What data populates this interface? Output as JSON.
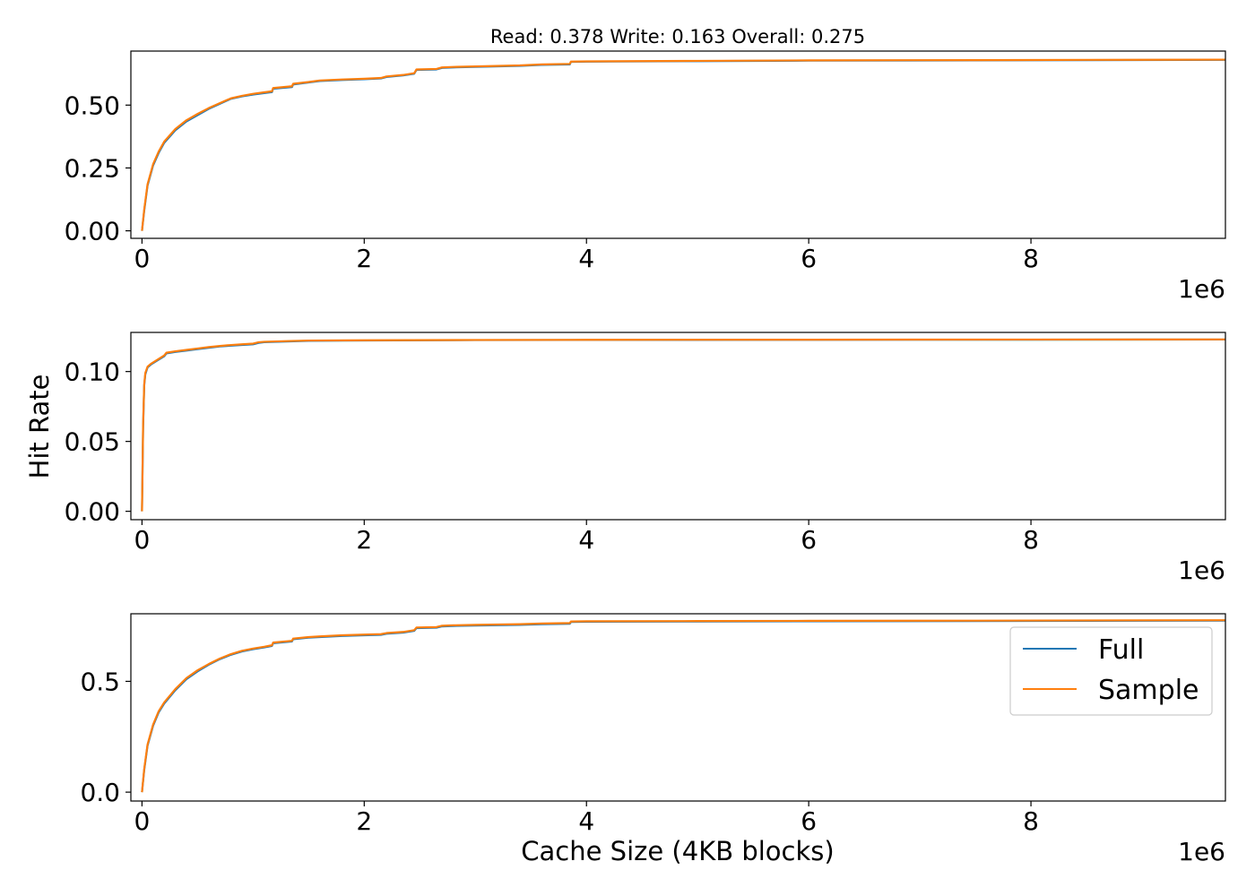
{
  "title": "Read: 0.378 Write: 0.163 Overall: 0.275",
  "ylabel": "Hit Rate",
  "xlabel": "Cache Size (4KB blocks)",
  "x_offset_label": "1e6",
  "colors": {
    "full": "#1f77b4",
    "sample": "#ff7f0e"
  },
  "legend": {
    "placement": "upper-right (bottom panel)",
    "entries": [
      "Full",
      "Sample"
    ]
  },
  "chart_data": [
    {
      "type": "line",
      "panel": "read",
      "title": "",
      "xlabel": "",
      "ylabel": "",
      "xlim": [
        -0.1,
        9.75
      ],
      "ylim": [
        -0.03,
        0.715
      ],
      "x_scale_note": "x in units of 1e6 blocks",
      "xticks": [
        0,
        2,
        4,
        6,
        8
      ],
      "xtick_labels": [
        "0",
        "2",
        "4",
        "6",
        "8"
      ],
      "yticks": [
        0.0,
        0.25,
        0.5
      ],
      "ytick_labels": [
        "0.00",
        "0.25",
        "0.50"
      ],
      "grid": false,
      "series": [
        {
          "name": "Full",
          "x": [
            0.0,
            0.02,
            0.05,
            0.1,
            0.15,
            0.2,
            0.3,
            0.4,
            0.5,
            0.6,
            0.7,
            0.8,
            0.9,
            1.0,
            1.1,
            1.17,
            1.18,
            1.35,
            1.36,
            1.5,
            1.6,
            1.8,
            2.0,
            2.15,
            2.2,
            2.35,
            2.45,
            2.47,
            2.65,
            2.7,
            2.8,
            3.0,
            3.4,
            3.6,
            3.85,
            3.86,
            4.0,
            5.0,
            6.0,
            7.5,
            8.5,
            9.75
          ],
          "y": [
            0.0,
            0.08,
            0.18,
            0.26,
            0.31,
            0.35,
            0.4,
            0.435,
            0.46,
            0.485,
            0.505,
            0.525,
            0.535,
            0.542,
            0.548,
            0.552,
            0.565,
            0.572,
            0.582,
            0.59,
            0.596,
            0.6,
            0.603,
            0.606,
            0.612,
            0.618,
            0.625,
            0.64,
            0.642,
            0.648,
            0.65,
            0.652,
            0.656,
            0.66,
            0.662,
            0.672,
            0.673,
            0.675,
            0.677,
            0.678,
            0.679,
            0.68
          ]
        },
        {
          "name": "Sample",
          "x": [
            0.0,
            0.02,
            0.05,
            0.1,
            0.15,
            0.2,
            0.3,
            0.4,
            0.5,
            0.6,
            0.7,
            0.8,
            0.9,
            1.0,
            1.1,
            1.17,
            1.18,
            1.35,
            1.36,
            1.5,
            1.6,
            1.8,
            2.0,
            2.15,
            2.2,
            2.35,
            2.45,
            2.47,
            2.65,
            2.7,
            2.8,
            3.0,
            3.4,
            3.6,
            3.85,
            3.86,
            4.0,
            5.0,
            6.0,
            7.5,
            8.5,
            9.75
          ],
          "y": [
            0.0,
            0.085,
            0.185,
            0.265,
            0.315,
            0.355,
            0.405,
            0.44,
            0.465,
            0.488,
            0.508,
            0.527,
            0.537,
            0.545,
            0.551,
            0.555,
            0.568,
            0.575,
            0.585,
            0.592,
            0.598,
            0.602,
            0.605,
            0.608,
            0.614,
            0.62,
            0.627,
            0.642,
            0.644,
            0.65,
            0.652,
            0.654,
            0.658,
            0.662,
            0.664,
            0.673,
            0.674,
            0.676,
            0.678,
            0.679,
            0.68,
            0.681
          ]
        }
      ]
    },
    {
      "type": "line",
      "panel": "write",
      "title": "",
      "xlabel": "",
      "ylabel": "Hit Rate",
      "xlim": [
        -0.1,
        9.75
      ],
      "ylim": [
        -0.006,
        0.128
      ],
      "x_scale_note": "x in units of 1e6 blocks",
      "xticks": [
        0,
        2,
        4,
        6,
        8
      ],
      "xtick_labels": [
        "0",
        "2",
        "4",
        "6",
        "8"
      ],
      "yticks": [
        0.0,
        0.05,
        0.1
      ],
      "ytick_labels": [
        "0.00",
        "0.05",
        "0.10"
      ],
      "grid": false,
      "series": [
        {
          "name": "Full",
          "x": [
            0.0,
            0.01,
            0.02,
            0.03,
            0.05,
            0.08,
            0.12,
            0.2,
            0.22,
            0.3,
            0.4,
            0.5,
            0.6,
            0.7,
            0.8,
            0.9,
            1.0,
            1.05,
            1.1,
            1.3,
            1.5,
            2.0,
            3.0,
            4.0,
            6.0,
            8.0,
            9.75
          ],
          "y": [
            0.0,
            0.06,
            0.09,
            0.098,
            0.103,
            0.105,
            0.107,
            0.111,
            0.113,
            0.114,
            0.115,
            0.116,
            0.117,
            0.118,
            0.1185,
            0.119,
            0.1195,
            0.1205,
            0.121,
            0.1215,
            0.122,
            0.1222,
            0.1225,
            0.1226,
            0.1227,
            0.1228,
            0.1229
          ]
        },
        {
          "name": "Sample",
          "x": [
            0.0,
            0.01,
            0.02,
            0.03,
            0.05,
            0.08,
            0.12,
            0.2,
            0.22,
            0.3,
            0.4,
            0.5,
            0.6,
            0.7,
            0.8,
            0.9,
            1.0,
            1.05,
            1.1,
            1.3,
            1.5,
            2.0,
            3.0,
            4.0,
            6.0,
            8.0,
            9.75
          ],
          "y": [
            0.0,
            0.062,
            0.091,
            0.099,
            0.1035,
            0.1055,
            0.1075,
            0.1115,
            0.1135,
            0.1145,
            0.1155,
            0.1165,
            0.1175,
            0.1183,
            0.119,
            0.1195,
            0.12,
            0.121,
            0.1213,
            0.1218,
            0.1222,
            0.1224,
            0.1226,
            0.1227,
            0.1228,
            0.1229,
            0.123
          ]
        }
      ]
    },
    {
      "type": "line",
      "panel": "overall",
      "title": "",
      "xlabel": "Cache Size (4KB blocks)",
      "ylabel": "",
      "xlim": [
        -0.1,
        9.75
      ],
      "ylim": [
        -0.04,
        0.805
      ],
      "x_scale_note": "x in units of 1e6 blocks",
      "xticks": [
        0,
        2,
        4,
        6,
        8
      ],
      "xtick_labels": [
        "0",
        "2",
        "4",
        "6",
        "8"
      ],
      "yticks": [
        0.0,
        0.5
      ],
      "ytick_labels": [
        "0.0",
        "0.5"
      ],
      "grid": false,
      "series": [
        {
          "name": "Full",
          "x": [
            0.0,
            0.02,
            0.05,
            0.1,
            0.15,
            0.2,
            0.3,
            0.4,
            0.5,
            0.6,
            0.7,
            0.8,
            0.9,
            1.0,
            1.1,
            1.17,
            1.18,
            1.35,
            1.36,
            1.5,
            1.6,
            1.8,
            2.0,
            2.15,
            2.2,
            2.35,
            2.45,
            2.47,
            2.65,
            2.7,
            2.8,
            3.0,
            3.4,
            3.6,
            3.85,
            3.86,
            4.0,
            5.0,
            6.0,
            7.5,
            8.5,
            9.75
          ],
          "y": [
            0.0,
            0.1,
            0.21,
            0.3,
            0.36,
            0.4,
            0.46,
            0.51,
            0.545,
            0.575,
            0.6,
            0.62,
            0.635,
            0.645,
            0.653,
            0.66,
            0.672,
            0.68,
            0.69,
            0.697,
            0.7,
            0.705,
            0.708,
            0.71,
            0.715,
            0.72,
            0.728,
            0.74,
            0.742,
            0.748,
            0.75,
            0.752,
            0.755,
            0.758,
            0.76,
            0.768,
            0.769,
            0.77,
            0.771,
            0.772,
            0.773,
            0.774
          ]
        },
        {
          "name": "Sample",
          "x": [
            0.0,
            0.02,
            0.05,
            0.1,
            0.15,
            0.2,
            0.3,
            0.4,
            0.5,
            0.6,
            0.7,
            0.8,
            0.9,
            1.0,
            1.1,
            1.17,
            1.18,
            1.35,
            1.36,
            1.5,
            1.6,
            1.8,
            2.0,
            2.15,
            2.2,
            2.35,
            2.45,
            2.47,
            2.65,
            2.7,
            2.8,
            3.0,
            3.4,
            3.6,
            3.85,
            3.86,
            4.0,
            5.0,
            6.0,
            7.5,
            8.5,
            9.75
          ],
          "y": [
            0.0,
            0.105,
            0.215,
            0.305,
            0.365,
            0.405,
            0.465,
            0.515,
            0.55,
            0.578,
            0.603,
            0.623,
            0.638,
            0.648,
            0.656,
            0.663,
            0.675,
            0.683,
            0.693,
            0.7,
            0.703,
            0.708,
            0.711,
            0.713,
            0.718,
            0.723,
            0.731,
            0.743,
            0.745,
            0.751,
            0.753,
            0.755,
            0.758,
            0.761,
            0.763,
            0.77,
            0.771,
            0.772,
            0.773,
            0.774,
            0.775,
            0.776
          ]
        }
      ]
    }
  ]
}
